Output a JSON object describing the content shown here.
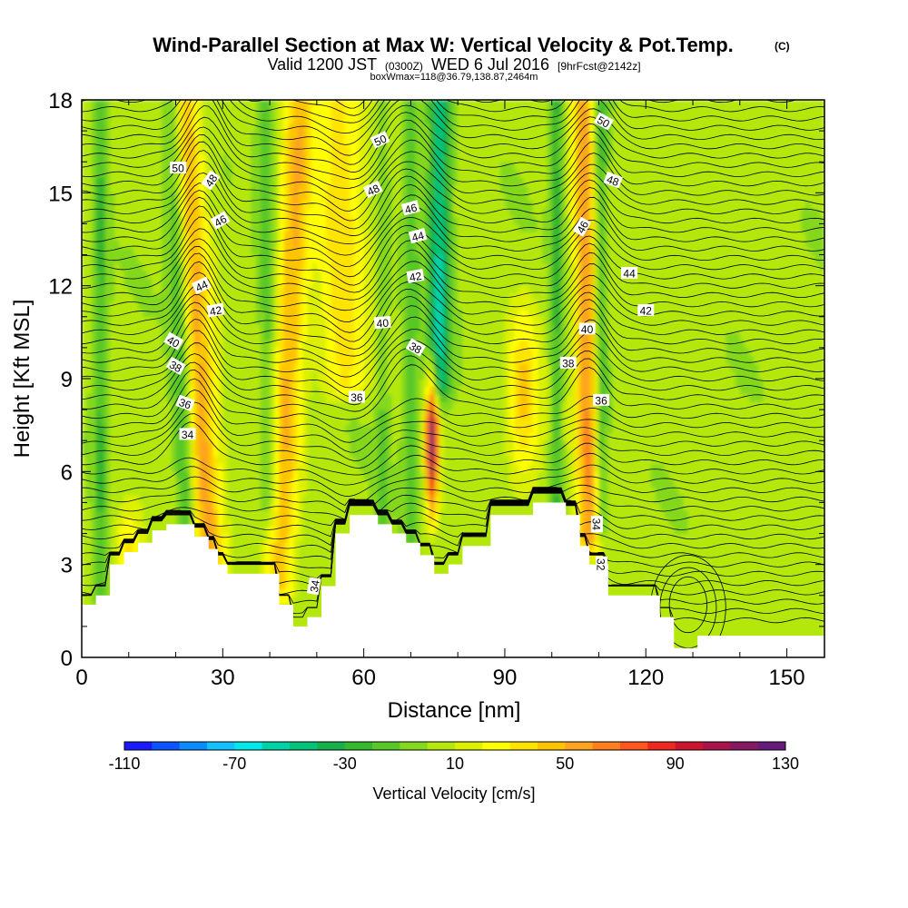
{
  "title": "Wind-Parallel Section at Max W: Vertical Velocity & Pot.Temp.",
  "copyright_mark": "(C)",
  "subtitle": {
    "prefix": "Valid 1200 JST",
    "utc": "(0300Z)",
    "date": "WED 6 Jul 2016",
    "forecast": "[9hrFcst@2142z]"
  },
  "box_info": "boxWmax=118@36.79,138.87,2464m",
  "chart_data": {
    "type": "heatmap",
    "xlabel": "Distance [nm]",
    "ylabel": "Height [Kft MSL]",
    "xlim": [
      0,
      158
    ],
    "ylim": [
      0,
      18
    ],
    "x_ticks": [
      "0",
      "30",
      "60",
      "90",
      "120",
      "150"
    ],
    "y_ticks": [
      "0",
      "3",
      "6",
      "9",
      "12",
      "15",
      "18"
    ],
    "colorbar": {
      "label": "Vertical Velocity [cm/s]",
      "tick_labels": [
        "-110",
        "-70",
        "-30",
        "10",
        "50",
        "90",
        "130"
      ],
      "range": [
        -110,
        130
      ],
      "colors": [
        "#1a1aff",
        "#0a55ff",
        "#0a8cff",
        "#14c0ff",
        "#00e8e8",
        "#00d2a8",
        "#00c278",
        "#14b04a",
        "#34b82e",
        "#58c828",
        "#84d81e",
        "#b4e80e",
        "#dcf000",
        "#ffff00",
        "#ffe400",
        "#ffc400",
        "#ffa41e",
        "#ff7e1e",
        "#ff561e",
        "#ee281e",
        "#cc1430",
        "#a8144a",
        "#861a60",
        "#661a7a"
      ]
    },
    "terrain_kft": [
      [
        0,
        1.7
      ],
      [
        3,
        1.7
      ],
      [
        3,
        2
      ],
      [
        6,
        2
      ],
      [
        6,
        3
      ],
      [
        9,
        3
      ],
      [
        9,
        3.4
      ],
      [
        12,
        3.4
      ],
      [
        12,
        3.7
      ],
      [
        15,
        3.7
      ],
      [
        15,
        4.1
      ],
      [
        18,
        4.1
      ],
      [
        18,
        4.3
      ],
      [
        24,
        4.3
      ],
      [
        24,
        3.9
      ],
      [
        27,
        3.9
      ],
      [
        27,
        3.5
      ],
      [
        29,
        3.5
      ],
      [
        29,
        3
      ],
      [
        31,
        3
      ],
      [
        31,
        2.7
      ],
      [
        42,
        2.7
      ],
      [
        42,
        1.7
      ],
      [
        45,
        1.7
      ],
      [
        45,
        1
      ],
      [
        48,
        1
      ],
      [
        48,
        1.3
      ],
      [
        51,
        1.3
      ],
      [
        51,
        2.3
      ],
      [
        54,
        2.3
      ],
      [
        54,
        4
      ],
      [
        57,
        4
      ],
      [
        57,
        4.6
      ],
      [
        63,
        4.6
      ],
      [
        63,
        4.3
      ],
      [
        66,
        4.3
      ],
      [
        66,
        4
      ],
      [
        69,
        4
      ],
      [
        69,
        3.7
      ],
      [
        72,
        3.7
      ],
      [
        72,
        3.3
      ],
      [
        75,
        3.3
      ],
      [
        75,
        2.7
      ],
      [
        78,
        2.7
      ],
      [
        78,
        3
      ],
      [
        81,
        3
      ],
      [
        81,
        3.6
      ],
      [
        87,
        3.6
      ],
      [
        87,
        4.6
      ],
      [
        96,
        4.6
      ],
      [
        96,
        5
      ],
      [
        103,
        5
      ],
      [
        103,
        4.6
      ],
      [
        106,
        4.6
      ],
      [
        106,
        3.6
      ],
      [
        108,
        3.6
      ],
      [
        108,
        3
      ],
      [
        112,
        3
      ],
      [
        112,
        2
      ],
      [
        123,
        2
      ],
      [
        123,
        1.3
      ],
      [
        126,
        1.3
      ],
      [
        126,
        0.3
      ],
      [
        131,
        0.3
      ],
      [
        131,
        0.7
      ],
      [
        158,
        0.7
      ]
    ],
    "updraft_bands": [
      {
        "x0": 27,
        "x1": 29,
        "lean": 3.3,
        "w": 3.5,
        "y_from": 3.0,
        "y_to": 18,
        "value": 50
      },
      {
        "x0": 42,
        "x1": 50,
        "lean": 1.6,
        "w": 3.2,
        "y_from": 2.5,
        "y_to": 18,
        "value": 45
      },
      {
        "x0": 74.5,
        "x1": 74.5,
        "lean": 0,
        "w": 1.3,
        "y_from": 4.5,
        "y_to": 9.5,
        "value": 110
      },
      {
        "x0": 94,
        "x1": 94,
        "lean": 0,
        "w": 3.2,
        "y_from": 5.5,
        "y_to": 11.5,
        "value": 38
      },
      {
        "x0": 108,
        "x1": 108,
        "lean": 0.6,
        "w": 2.5,
        "y_from": 4.0,
        "y_to": 18,
        "value": 55
      },
      {
        "x0": 56,
        "x1": 58,
        "lean": 2.5,
        "w": 5.0,
        "y_from": 9.0,
        "y_to": 18,
        "value": 30
      },
      {
        "x0": 10,
        "x1": 10,
        "lean": 0,
        "w": 3.0,
        "y_from": 2.0,
        "y_to": 5.0,
        "value": 28
      }
    ],
    "downdraft_bands": [
      {
        "x0": 22.5,
        "x1": 26,
        "lean": 3.2,
        "w": 2.2,
        "y_from": 4.0,
        "y_to": 18,
        "value": -38
      },
      {
        "x0": 4,
        "x1": 4,
        "lean": 0,
        "w": 1.6,
        "y_from": 2.0,
        "y_to": 18,
        "value": -25
      },
      {
        "x0": 76,
        "x1": 76,
        "lean": 0,
        "w": 2.3,
        "y_from": 9.0,
        "y_to": 18,
        "value": -55
      },
      {
        "x0": 40,
        "x1": 42,
        "lean": 1.5,
        "w": 2.0,
        "y_from": 5.0,
        "y_to": 18,
        "value": -22
      },
      {
        "x0": 110.5,
        "x1": 111,
        "lean": 0.4,
        "w": 1.5,
        "y_from": 4.5,
        "y_to": 18,
        "value": -32
      },
      {
        "x0": 101,
        "x1": 101,
        "lean": 0,
        "w": 1.4,
        "y_from": 5.0,
        "y_to": 18,
        "value": -28
      },
      {
        "x0": 70,
        "x1": 70,
        "lean": 0,
        "w": 1.8,
        "y_from": 3.5,
        "y_to": 18,
        "value": -20
      },
      {
        "x0": 64,
        "x1": 64,
        "lean": 0,
        "w": 1.4,
        "y_from": 4.5,
        "y_to": 18,
        "value": -15
      }
    ],
    "contour_labels": [
      {
        "text": "50",
        "x": 20.5,
        "y": 15.8,
        "angle": 0
      },
      {
        "text": "48",
        "x": 27.5,
        "y": 15.4,
        "angle": -55
      },
      {
        "text": "46",
        "x": 29.5,
        "y": 14.1,
        "angle": -30
      },
      {
        "text": "44",
        "x": 25.5,
        "y": 12.0,
        "angle": -25
      },
      {
        "text": "42",
        "x": 28.5,
        "y": 11.2,
        "angle": -10
      },
      {
        "text": "40",
        "x": 19.5,
        "y": 10.2,
        "angle": 30
      },
      {
        "text": "38",
        "x": 20,
        "y": 9.4,
        "angle": 30
      },
      {
        "text": "36",
        "x": 22,
        "y": 8.2,
        "angle": 20
      },
      {
        "text": "34",
        "x": 22.5,
        "y": 7.2,
        "angle": 0
      },
      {
        "text": "50",
        "x": 63.5,
        "y": 16.7,
        "angle": -25
      },
      {
        "text": "48",
        "x": 62,
        "y": 15.1,
        "angle": -25
      },
      {
        "text": "46",
        "x": 70,
        "y": 14.5,
        "angle": -15
      },
      {
        "text": "44",
        "x": 71.5,
        "y": 13.6,
        "angle": -15
      },
      {
        "text": "42",
        "x": 71,
        "y": 12.3,
        "angle": -10
      },
      {
        "text": "40",
        "x": 64,
        "y": 10.8,
        "angle": -5
      },
      {
        "text": "38",
        "x": 71,
        "y": 10.0,
        "angle": 30
      },
      {
        "text": "36",
        "x": 58.5,
        "y": 8.4,
        "angle": 0
      },
      {
        "text": "34",
        "x": 49.5,
        "y": 2.3,
        "angle": -80
      },
      {
        "text": "50",
        "x": 111,
        "y": 17.3,
        "angle": 30
      },
      {
        "text": "48",
        "x": 113,
        "y": 15.4,
        "angle": 20
      },
      {
        "text": "46",
        "x": 106.5,
        "y": 13.9,
        "angle": -60
      },
      {
        "text": "44",
        "x": 116.5,
        "y": 12.4,
        "angle": 0
      },
      {
        "text": "42",
        "x": 120,
        "y": 11.2,
        "angle": 0
      },
      {
        "text": "40",
        "x": 107.5,
        "y": 10.6,
        "angle": 0
      },
      {
        "text": "38",
        "x": 103.5,
        "y": 9.5,
        "angle": 0
      },
      {
        "text": "36",
        "x": 110.5,
        "y": 8.3,
        "angle": 0
      },
      {
        "text": "34",
        "x": 109.5,
        "y": 4.3,
        "angle": 90
      },
      {
        "text": "32",
        "x": 110.5,
        "y": 3.0,
        "angle": 90
      }
    ]
  }
}
